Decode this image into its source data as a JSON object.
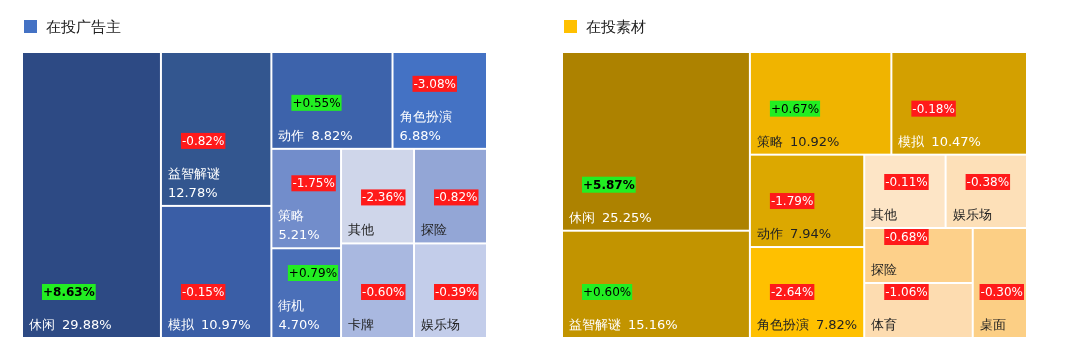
{
  "chart_data": [
    {
      "type": "other",
      "title": "在投广告主",
      "color": "#4472c4",
      "categories": [
        "休闲",
        "益智解谜",
        "模拟",
        "动作",
        "角色扮演",
        "策略",
        "街机",
        "其他",
        "探险",
        "卡牌",
        "娱乐场"
      ],
      "values": [
        29.88,
        12.78,
        10.97,
        8.82,
        6.88,
        5.21,
        4.7,
        null,
        null,
        null,
        null
      ],
      "value_labels": [
        "29.88%",
        "12.78%",
        "10.97%",
        "8.82%",
        "6.88%",
        "5.21%",
        "4.70%",
        null,
        null,
        null,
        null
      ],
      "annotations": [
        {
          "text": "+8.63%",
          "x": "休闲"
        },
        {
          "text": "-0.82%",
          "x": "益智解谜"
        },
        {
          "text": "-0.15%",
          "x": "模拟"
        },
        {
          "text": "+0.55%",
          "x": "动作"
        },
        {
          "text": "-3.08%",
          "x": "角色扮演"
        },
        {
          "text": "-1.75%",
          "x": "策略"
        },
        {
          "text": "+0.79%",
          "x": "街机"
        },
        {
          "text": "-2.36%",
          "x": "其他"
        },
        {
          "text": "-0.82%",
          "x": "探险"
        },
        {
          "text": "-0.60%",
          "x": "卡牌"
        },
        {
          "text": "-0.39%",
          "x": "娱乐场"
        }
      ],
      "colors": [
        "#2d4a84",
        "#33568f",
        "#3a5ea6",
        "#3d63ab",
        "#4472c4",
        "#728dcb",
        "#4a6fb8",
        "#cfd6ea",
        "#93a6d6",
        "#a9b8e0",
        "#c3cdea"
      ]
    },
    {
      "type": "other",
      "title": "在投素材",
      "color": "#ffc000",
      "categories": [
        "休闲",
        "益智解谜",
        "策略",
        "模拟",
        "动作",
        "角色扮演",
        "其他",
        "娱乐场",
        "探险",
        "体育",
        "桌面"
      ],
      "values": [
        25.25,
        15.16,
        10.92,
        10.47,
        7.94,
        7.82,
        null,
        null,
        null,
        null,
        null
      ],
      "value_labels": [
        "25.25%",
        "15.16%",
        "10.92%",
        "10.47%",
        "7.94%",
        "7.82%",
        null,
        null,
        null,
        null,
        null
      ],
      "annotations": [
        {
          "text": "+5.87%",
          "x": "休闲"
        },
        {
          "text": "+0.60%",
          "x": "益智解谜"
        },
        {
          "text": "+0.67%",
          "x": "策略"
        },
        {
          "text": "-0.18%",
          "x": "模拟"
        },
        {
          "text": "-1.79%",
          "x": "动作"
        },
        {
          "text": "-2.64%",
          "x": "角色扮演"
        },
        {
          "text": "-0.11%",
          "x": "其他"
        },
        {
          "text": "-0.38%",
          "x": "娱乐场"
        },
        {
          "text": "-0.68%",
          "x": "探险"
        },
        {
          "text": "-1.06%",
          "x": "体育"
        },
        {
          "text": "-0.30%",
          "x": "桌面"
        }
      ],
      "colors": [
        "#ad8200",
        "#c29400",
        "#f0b400",
        "#d3a000",
        "#dca800",
        "#ffc000",
        "#fde5c6",
        "#fde0b8",
        "#fdd08a",
        "#fddcb0",
        "#fccf85"
      ]
    }
  ]
}
